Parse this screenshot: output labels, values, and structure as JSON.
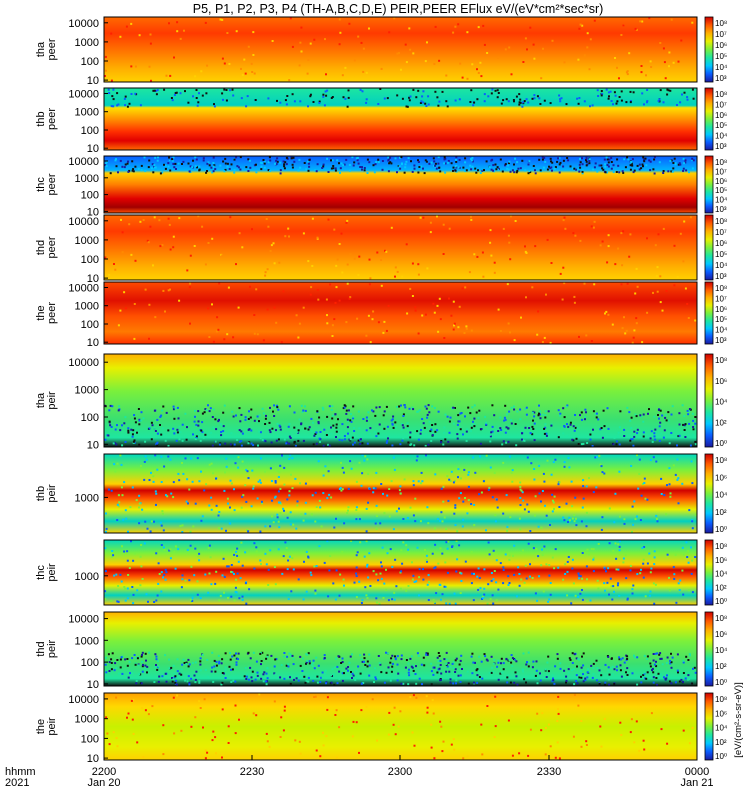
{
  "chart_data": {
    "type": "heatmap",
    "title": "P5, P1, P2, P3, P4 (TH-A,B,C,D,E) PEIR,PEER EFlux eV/(eV*cm²*sec*sr)",
    "x_time_labels": [
      "2200",
      "2230",
      "2300",
      "2330",
      "0000"
    ],
    "x_date_labels": [
      "Jan 20",
      "",
      "",
      "",
      "Jan 21"
    ],
    "x_row_labels": [
      "hhmm",
      "2021"
    ],
    "colorbar_label": "[eV/(cm²-s-sr-eV)]",
    "colorbar_ticks": [
      "10⁹",
      "10⁸",
      "10⁷",
      "10⁶",
      "10⁵",
      "10⁴",
      "10³",
      "10²",
      "10¹",
      "10⁰"
    ],
    "colorbar_ticks_short": [
      "10⁸",
      "10⁶",
      "10⁴",
      "10²",
      "10⁰"
    ],
    "panels": [
      {
        "ylabel": [
          "tha",
          "peer"
        ],
        "yticks": [
          "10000",
          "1000",
          "100",
          "10"
        ],
        "style": "electron-warm",
        "cbar": "full"
      },
      {
        "ylabel": [
          "thb",
          "peer"
        ],
        "yticks": [
          "10000",
          "1000",
          "100",
          "10"
        ],
        "style": "electron-banded",
        "cbar": "full"
      },
      {
        "ylabel": [
          "thc",
          "peer"
        ],
        "yticks": [
          "10000",
          "1000",
          "100",
          "10"
        ],
        "style": "electron-blue-top",
        "cbar": "full"
      },
      {
        "ylabel": [
          "thd",
          "peer"
        ],
        "yticks": [
          "10000",
          "1000",
          "100",
          "10"
        ],
        "style": "electron-warm",
        "cbar": "full"
      },
      {
        "ylabel": [
          "the",
          "peer"
        ],
        "yticks": [
          "10000",
          "1000",
          "100",
          "10"
        ],
        "style": "electron-hot",
        "cbar": "full"
      },
      {
        "ylabel": [
          "tha",
          "peir"
        ],
        "yticks": [
          "10000",
          "1000",
          "100",
          "10"
        ],
        "style": "ion-noisy",
        "cbar": "short"
      },
      {
        "ylabel": [
          "thb",
          "peir"
        ],
        "yticks": [
          "1000"
        ],
        "style": "ion-banded",
        "cbar": "short"
      },
      {
        "ylabel": [
          "thc",
          "peir"
        ],
        "yticks": [
          "1000"
        ],
        "style": "ion-banded",
        "cbar": "short"
      },
      {
        "ylabel": [
          "thd",
          "peir"
        ],
        "yticks": [
          "10000",
          "1000",
          "100",
          "10"
        ],
        "style": "ion-noisy",
        "cbar": "short"
      },
      {
        "ylabel": [
          "the",
          "peir"
        ],
        "yticks": [
          "10000",
          "1000",
          "100",
          "10"
        ],
        "style": "ion-smooth",
        "cbar": "short"
      }
    ]
  }
}
